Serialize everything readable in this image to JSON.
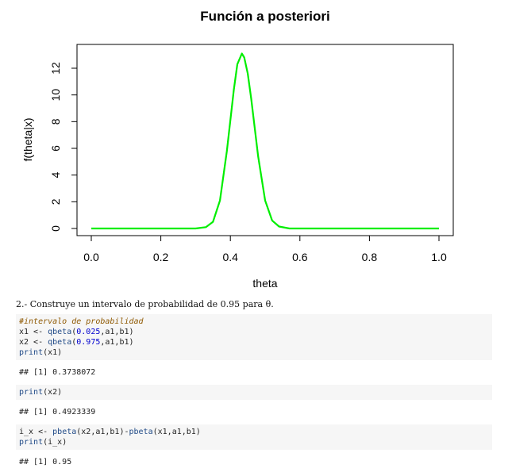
{
  "chart_data": {
    "type": "line",
    "title": "Función a posteriori",
    "xlabel": "theta",
    "ylabel": "f(theta|x)",
    "xlim": [
      0,
      1
    ],
    "ylim": [
      0,
      13.2
    ],
    "x_ticks": [
      "0.0",
      "0.2",
      "0.4",
      "0.6",
      "0.8",
      "1.0"
    ],
    "y_ticks": [
      "0",
      "2",
      "4",
      "6",
      "8",
      "10",
      "12"
    ],
    "series": [
      {
        "color": "#00ee00",
        "x": [
          0,
          0.3,
          0.33,
          0.35,
          0.37,
          0.39,
          0.41,
          0.42,
          0.433,
          0.44,
          0.45,
          0.46,
          0.48,
          0.5,
          0.52,
          0.54,
          0.57,
          1.0
        ],
        "y": [
          0,
          0,
          0.1,
          0.5,
          2.1,
          5.8,
          10.4,
          12.3,
          13.1,
          12.8,
          11.6,
          9.7,
          5.4,
          2.1,
          0.6,
          0.15,
          0,
          0
        ]
      }
    ]
  },
  "doc": {
    "prose": "2.- Construye un intervalo de probabilidad de 0.95 para θ.",
    "block1": {
      "comment": "#intervalo de probabilidad",
      "l1": {
        "a": "x1 <- ",
        "fn": "qbeta",
        "b": "(",
        "num": "0.025",
        "c": ",a1,b1)"
      },
      "l2": {
        "a": "x2 <- ",
        "fn": "qbeta",
        "b": "(",
        "num": "0.975",
        "c": ",a1,b1)"
      },
      "l3": {
        "fn": "print",
        "c": "(x1)"
      }
    },
    "out1": "## [1] 0.3738072",
    "block2": {
      "fn": "print",
      "c": "(x2)"
    },
    "out2": "## [1] 0.4923339",
    "block3": {
      "l1": {
        "a": "i_x <- ",
        "fn1": "pbeta",
        "b": "(x2,a1,b1)-",
        "fn2": "pbeta",
        "c": "(x1,a1,b1)"
      },
      "l2": {
        "fn": "print",
        "c": "(i_x)"
      }
    },
    "out3": "## [1] 0.95"
  }
}
